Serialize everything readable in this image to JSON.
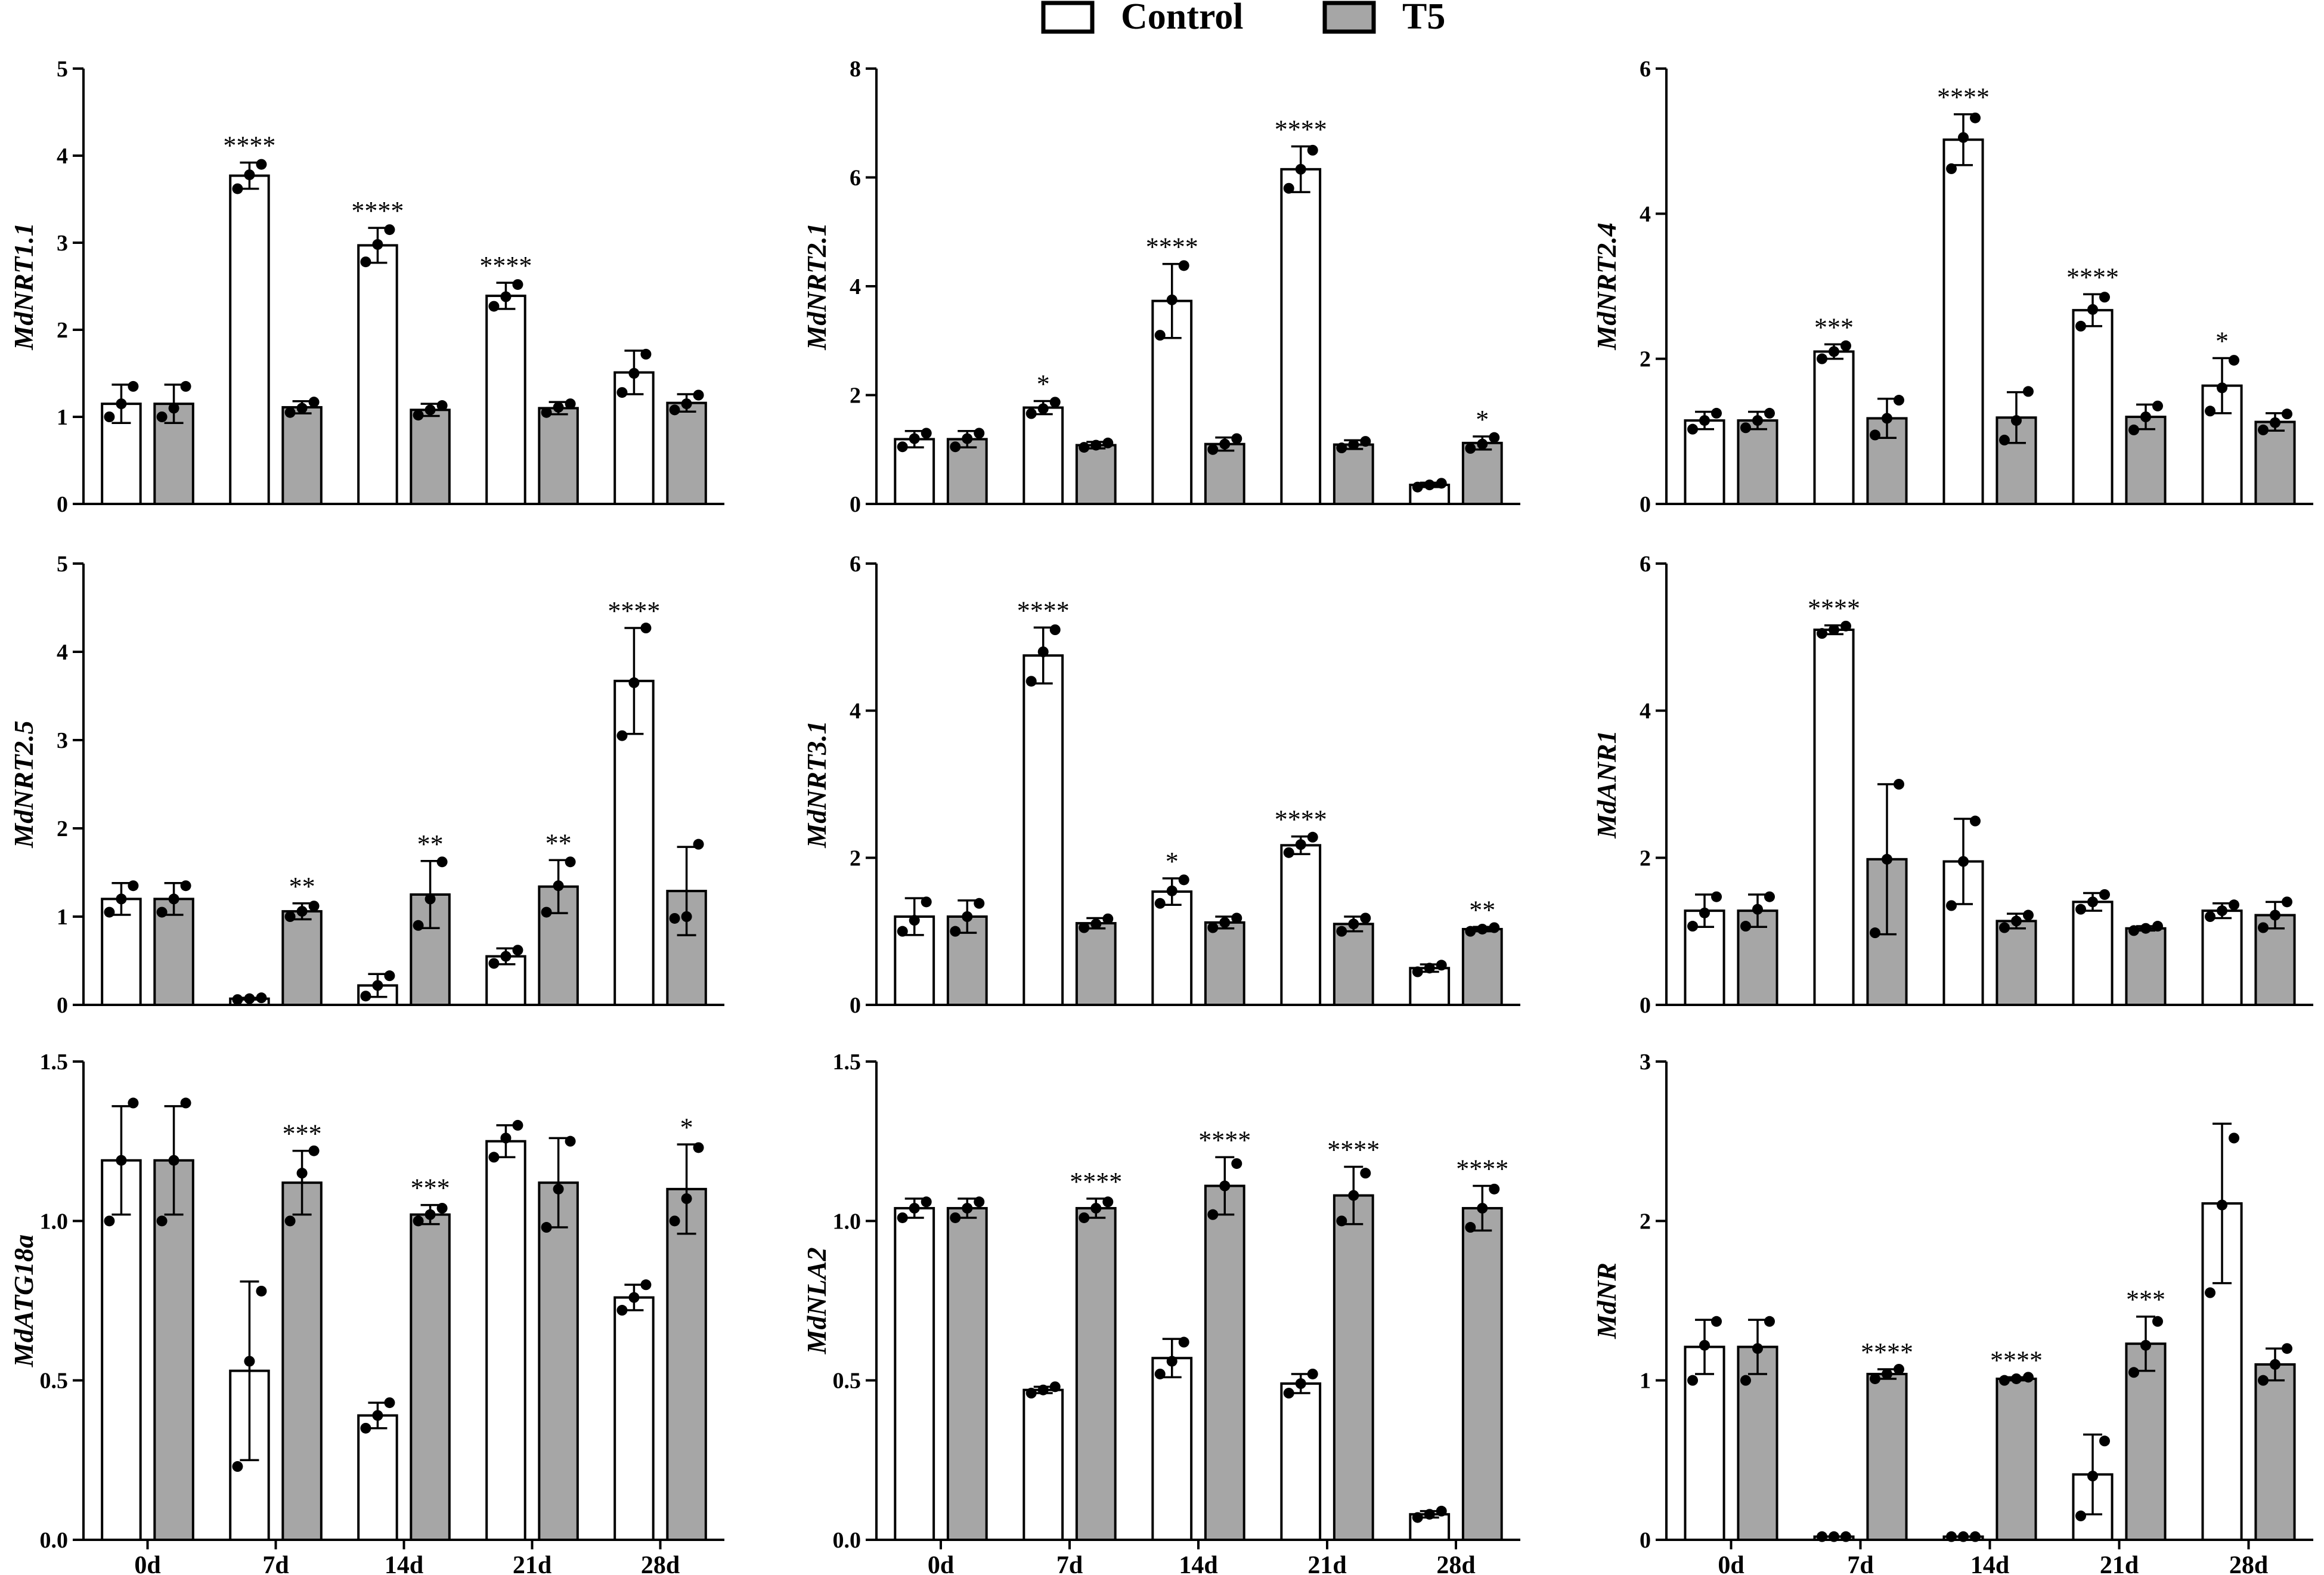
{
  "legend": [
    {
      "name": "Control",
      "color": "#ffffff"
    },
    {
      "name": "T5",
      "color": "#a6a6a6"
    }
  ],
  "chart_data": [
    {
      "type": "bar",
      "ylabel": "MdNRT1.1",
      "ylim": [
        0,
        5
      ],
      "yticks": [
        0,
        1,
        2,
        3,
        4,
        5
      ],
      "yticklabels": [
        "0",
        "1",
        "2",
        "3",
        "4",
        "5"
      ],
      "categories": [
        "0d",
        "7d",
        "14d",
        "21d",
        "28d"
      ],
      "series": [
        {
          "name": "Control",
          "values": [
            1.15,
            3.77,
            2.97,
            2.39,
            1.51
          ],
          "errors": [
            0.22,
            0.15,
            0.2,
            0.15,
            0.25
          ],
          "points": [
            [
              1.0,
              1.15,
              1.35
            ],
            [
              3.62,
              3.78,
              3.9
            ],
            [
              2.78,
              2.98,
              3.15
            ],
            [
              2.27,
              2.38,
              2.52
            ],
            [
              1.28,
              1.5,
              1.72
            ]
          ],
          "sig": [
            "",
            "****",
            "****",
            "****",
            ""
          ]
        },
        {
          "name": "T5",
          "values": [
            1.15,
            1.11,
            1.08,
            1.1,
            1.16
          ],
          "errors": [
            0.22,
            0.07,
            0.07,
            0.07,
            0.1
          ],
          "points": [
            [
              1.0,
              1.1,
              1.35
            ],
            [
              1.05,
              1.1,
              1.17
            ],
            [
              1.02,
              1.08,
              1.13
            ],
            [
              1.05,
              1.11,
              1.15
            ],
            [
              1.08,
              1.15,
              1.25
            ]
          ],
          "sig": [
            "",
            "",
            "",
            "",
            ""
          ]
        }
      ]
    },
    {
      "type": "bar",
      "ylabel": "MdNRT2.1",
      "ylim": [
        0,
        8
      ],
      "yticks": [
        0,
        2,
        4,
        6,
        8
      ],
      "yticklabels": [
        "0",
        "2",
        "4",
        "6",
        "8"
      ],
      "categories": [
        "0d",
        "7d",
        "14d",
        "21d",
        "28d"
      ],
      "series": [
        {
          "name": "Control",
          "values": [
            1.19,
            1.77,
            3.73,
            6.15,
            0.35
          ],
          "errors": [
            0.15,
            0.12,
            0.68,
            0.42,
            0.04
          ],
          "points": [
            [
              1.05,
              1.2,
              1.3
            ],
            [
              1.66,
              1.75,
              1.87
            ],
            [
              3.1,
              3.75,
              4.38
            ],
            [
              5.8,
              6.15,
              6.5
            ],
            [
              0.31,
              0.35,
              0.38
            ]
          ],
          "sig": [
            "",
            "*",
            "****",
            "****",
            ""
          ]
        },
        {
          "name": "T5",
          "values": [
            1.19,
            1.08,
            1.1,
            1.09,
            1.12
          ],
          "errors": [
            0.15,
            0.06,
            0.12,
            0.08,
            0.12
          ],
          "points": [
            [
              1.05,
              1.2,
              1.3
            ],
            [
              1.04,
              1.08,
              1.12
            ],
            [
              1.0,
              1.1,
              1.2
            ],
            [
              1.03,
              1.09,
              1.15
            ],
            [
              1.02,
              1.1,
              1.22
            ]
          ],
          "sig": [
            "",
            "",
            "",
            "",
            "*"
          ]
        }
      ]
    },
    {
      "type": "bar",
      "ylabel": "MdNRT2.4",
      "ylim": [
        0,
        6
      ],
      "yticks": [
        0,
        2,
        4,
        6
      ],
      "yticklabels": [
        "0",
        "2",
        "4",
        "6"
      ],
      "categories": [
        "0d",
        "7d",
        "14d",
        "21d",
        "28d"
      ],
      "series": [
        {
          "name": "Control",
          "values": [
            1.15,
            2.1,
            5.02,
            2.67,
            1.63
          ],
          "errors": [
            0.12,
            0.1,
            0.35,
            0.22,
            0.38
          ],
          "points": [
            [
              1.03,
              1.15,
              1.25
            ],
            [
              2.0,
              2.1,
              2.18
            ],
            [
              4.62,
              5.05,
              5.32
            ],
            [
              2.45,
              2.68,
              2.85
            ],
            [
              1.28,
              1.6,
              1.98
            ]
          ],
          "sig": [
            "",
            "***",
            "****",
            "****",
            "*"
          ]
        },
        {
          "name": "T5",
          "values": [
            1.15,
            1.18,
            1.19,
            1.2,
            1.13
          ],
          "errors": [
            0.12,
            0.27,
            0.35,
            0.17,
            0.12
          ],
          "points": [
            [
              1.05,
              1.15,
              1.25
            ],
            [
              0.95,
              1.18,
              1.43
            ],
            [
              0.88,
              1.15,
              1.55
            ],
            [
              1.02,
              1.2,
              1.35
            ],
            [
              1.02,
              1.12,
              1.24
            ]
          ],
          "sig": [
            "",
            "",
            "",
            "",
            ""
          ]
        }
      ]
    },
    {
      "type": "bar",
      "ylabel": "MdNRT2.5",
      "ylim": [
        0,
        5
      ],
      "yticks": [
        0,
        1,
        2,
        3,
        4,
        5
      ],
      "yticklabels": [
        "0",
        "1",
        "2",
        "3",
        "4",
        "5"
      ],
      "categories": [
        "0d",
        "7d",
        "14d",
        "21d",
        "28d"
      ],
      "series": [
        {
          "name": "Control",
          "values": [
            1.2,
            0.07,
            0.22,
            0.55,
            3.67
          ],
          "errors": [
            0.18,
            0.01,
            0.13,
            0.09,
            0.6
          ],
          "points": [
            [
              1.05,
              1.2,
              1.35
            ],
            [
              0.06,
              0.07,
              0.08
            ],
            [
              0.1,
              0.22,
              0.33
            ],
            [
              0.47,
              0.55,
              0.62
            ],
            [
              3.05,
              3.65,
              4.27
            ]
          ],
          "sig": [
            "",
            "",
            "",
            "",
            "****"
          ]
        },
        {
          "name": "T5",
          "values": [
            1.2,
            1.06,
            1.25,
            1.34,
            1.29
          ],
          "errors": [
            0.18,
            0.09,
            0.38,
            0.3,
            0.5
          ],
          "points": [
            [
              1.05,
              1.2,
              1.35
            ],
            [
              1.0,
              1.06,
              1.12
            ],
            [
              0.9,
              1.2,
              1.62
            ],
            [
              1.05,
              1.35,
              1.62
            ],
            [
              0.98,
              1.0,
              1.82
            ]
          ],
          "sig": [
            "",
            "**",
            "**",
            "**",
            ""
          ]
        }
      ]
    },
    {
      "type": "bar",
      "ylabel": "MdNRT3.1",
      "ylim": [
        0,
        6
      ],
      "yticks": [
        0,
        2,
        4,
        6
      ],
      "yticklabels": [
        "0",
        "2",
        "4",
        "6"
      ],
      "categories": [
        "0d",
        "7d",
        "14d",
        "21d",
        "28d"
      ],
      "series": [
        {
          "name": "Control",
          "values": [
            1.2,
            4.75,
            1.54,
            2.17,
            0.5
          ],
          "errors": [
            0.25,
            0.38,
            0.18,
            0.12,
            0.05
          ],
          "points": [
            [
              1.0,
              1.15,
              1.4
            ],
            [
              4.4,
              4.8,
              5.1
            ],
            [
              1.38,
              1.55,
              1.7
            ],
            [
              2.07,
              2.18,
              2.28
            ],
            [
              0.45,
              0.5,
              0.54
            ]
          ],
          "sig": [
            "",
            "****",
            "*",
            "****",
            ""
          ]
        },
        {
          "name": "T5",
          "values": [
            1.2,
            1.11,
            1.12,
            1.1,
            1.03
          ],
          "errors": [
            0.22,
            0.07,
            0.08,
            0.1,
            0.03
          ],
          "points": [
            [
              1.0,
              1.2,
              1.38
            ],
            [
              1.05,
              1.1,
              1.17
            ],
            [
              1.05,
              1.12,
              1.18
            ],
            [
              1.0,
              1.1,
              1.18
            ],
            [
              1.0,
              1.03,
              1.05
            ]
          ],
          "sig": [
            "",
            "",
            "",
            "",
            "**"
          ]
        }
      ]
    },
    {
      "type": "bar",
      "ylabel": "MdANR1",
      "ylim": [
        0,
        6
      ],
      "yticks": [
        0,
        2,
        4,
        6
      ],
      "yticklabels": [
        "0",
        "2",
        "4",
        "6"
      ],
      "categories": [
        "0d",
        "7d",
        "14d",
        "21d",
        "28d"
      ],
      "series": [
        {
          "name": "Control",
          "values": [
            1.28,
            5.1,
            1.95,
            1.4,
            1.28
          ],
          "errors": [
            0.22,
            0.06,
            0.58,
            0.12,
            0.1
          ],
          "points": [
            [
              1.07,
              1.25,
              1.47
            ],
            [
              5.05,
              5.1,
              5.15
            ],
            [
              1.35,
              1.95,
              2.5
            ],
            [
              1.3,
              1.4,
              1.5
            ],
            [
              1.2,
              1.28,
              1.36
            ]
          ],
          "sig": [
            "",
            "****",
            "",
            "",
            ""
          ]
        },
        {
          "name": "T5",
          "values": [
            1.28,
            1.98,
            1.14,
            1.04,
            1.22
          ],
          "errors": [
            0.22,
            1.02,
            0.1,
            0.03,
            0.18
          ],
          "points": [
            [
              1.07,
              1.3,
              1.47
            ],
            [
              0.98,
              1.98,
              3.0
            ],
            [
              1.05,
              1.14,
              1.22
            ],
            [
              1.01,
              1.04,
              1.07
            ],
            [
              1.05,
              1.22,
              1.4
            ]
          ],
          "sig": [
            "",
            "",
            "",
            "",
            ""
          ]
        }
      ]
    },
    {
      "type": "bar",
      "ylabel": "MdATG18a",
      "ylim": [
        0,
        1.5
      ],
      "yticks": [
        0,
        0.5,
        1.0,
        1.5
      ],
      "yticklabels": [
        "0.0",
        "0.5",
        "1.0",
        "1.5"
      ],
      "categories": [
        "0d",
        "7d",
        "14d",
        "21d",
        "28d"
      ],
      "series": [
        {
          "name": "Control",
          "values": [
            1.19,
            0.53,
            0.39,
            1.25,
            0.76
          ],
          "errors": [
            0.17,
            0.28,
            0.04,
            0.05,
            0.04
          ],
          "points": [
            [
              1.0,
              1.19,
              1.37
            ],
            [
              0.23,
              0.56,
              0.78
            ],
            [
              0.35,
              0.39,
              0.43
            ],
            [
              1.2,
              1.26,
              1.3
            ],
            [
              0.72,
              0.76,
              0.8
            ]
          ],
          "sig": [
            "",
            "",
            "",
            "",
            ""
          ]
        },
        {
          "name": "T5",
          "values": [
            1.19,
            1.12,
            1.02,
            1.12,
            1.1
          ],
          "errors": [
            0.17,
            0.1,
            0.03,
            0.14,
            0.14
          ],
          "points": [
            [
              1.0,
              1.19,
              1.37
            ],
            [
              1.0,
              1.15,
              1.22
            ],
            [
              1.0,
              1.02,
              1.04
            ],
            [
              0.98,
              1.1,
              1.25
            ],
            [
              1.0,
              1.07,
              1.23
            ]
          ],
          "sig": [
            "",
            "***",
            "***",
            "",
            "*"
          ]
        }
      ]
    },
    {
      "type": "bar",
      "ylabel": "MdNLA2",
      "ylim": [
        0,
        1.5
      ],
      "yticks": [
        0,
        0.5,
        1.0,
        1.5
      ],
      "yticklabels": [
        "0.0",
        "0.5",
        "1.0",
        "1.5"
      ],
      "categories": [
        "0d",
        "7d",
        "14d",
        "21d",
        "28d"
      ],
      "series": [
        {
          "name": "Control",
          "values": [
            1.04,
            0.47,
            0.57,
            0.49,
            0.08
          ],
          "errors": [
            0.03,
            0.01,
            0.06,
            0.03,
            0.01
          ],
          "points": [
            [
              1.01,
              1.04,
              1.06
            ],
            [
              0.46,
              0.47,
              0.48
            ],
            [
              0.52,
              0.56,
              0.62
            ],
            [
              0.46,
              0.49,
              0.52
            ],
            [
              0.07,
              0.08,
              0.09
            ]
          ],
          "sig": [
            "",
            "",
            "",
            "",
            ""
          ]
        },
        {
          "name": "T5",
          "values": [
            1.04,
            1.04,
            1.11,
            1.08,
            1.04
          ],
          "errors": [
            0.03,
            0.03,
            0.09,
            0.09,
            0.07
          ],
          "points": [
            [
              1.01,
              1.04,
              1.06
            ],
            [
              1.01,
              1.04,
              1.06
            ],
            [
              1.02,
              1.11,
              1.18
            ],
            [
              1.0,
              1.08,
              1.15
            ],
            [
              0.98,
              1.04,
              1.1
            ]
          ],
          "sig": [
            "",
            "****",
            "****",
            "****",
            "****"
          ]
        }
      ]
    },
    {
      "type": "bar",
      "ylabel": "MdNR",
      "ylim": [
        0,
        3
      ],
      "yticks": [
        0,
        1,
        2,
        3
      ],
      "yticklabels": [
        "0",
        "1",
        "2",
        "3"
      ],
      "categories": [
        "0d",
        "7d",
        "14d",
        "21d",
        "28d"
      ],
      "series": [
        {
          "name": "Control",
          "values": [
            1.21,
            0.02,
            0.02,
            0.41,
            2.11
          ],
          "errors": [
            0.17,
            0.0,
            0.0,
            0.25,
            0.5
          ],
          "points": [
            [
              1.0,
              1.22,
              1.37
            ],
            [
              0.02,
              0.02,
              0.02
            ],
            [
              0.02,
              0.02,
              0.02
            ],
            [
              0.15,
              0.4,
              0.62
            ],
            [
              1.55,
              2.1,
              2.52
            ]
          ],
          "sig": [
            "",
            "",
            "",
            "",
            ""
          ]
        },
        {
          "name": "T5",
          "values": [
            1.21,
            1.04,
            1.01,
            1.23,
            1.1
          ],
          "errors": [
            0.17,
            0.03,
            0.01,
            0.17,
            0.1
          ],
          "points": [
            [
              1.0,
              1.2,
              1.37
            ],
            [
              1.01,
              1.04,
              1.07
            ],
            [
              1.0,
              1.01,
              1.02
            ],
            [
              1.05,
              1.22,
              1.37
            ],
            [
              1.0,
              1.1,
              1.2
            ]
          ],
          "sig": [
            "",
            "****",
            "****",
            "***",
            ""
          ]
        }
      ]
    }
  ]
}
